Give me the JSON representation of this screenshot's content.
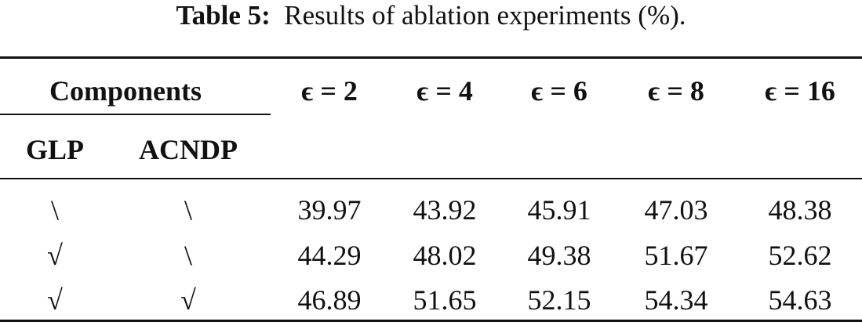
{
  "caption": {
    "label": "Table 5:",
    "text": "Results of ablation experiments (%)."
  },
  "table": {
    "group_header": "Components",
    "columns": [
      "ϵ = 2",
      "ϵ = 4",
      "ϵ = 6",
      "ϵ = 8",
      "ϵ = 16"
    ],
    "sub_headers": [
      "GLP",
      "ACNDP"
    ],
    "rows": [
      [
        "\\",
        "\\",
        "39.97",
        "43.92",
        "45.91",
        "47.03",
        "48.38"
      ],
      [
        "√",
        "\\",
        "44.29",
        "48.02",
        "49.38",
        "51.67",
        "52.62"
      ],
      [
        "√",
        "√",
        "46.89",
        "51.65",
        "52.15",
        "54.34",
        "54.63"
      ]
    ]
  }
}
